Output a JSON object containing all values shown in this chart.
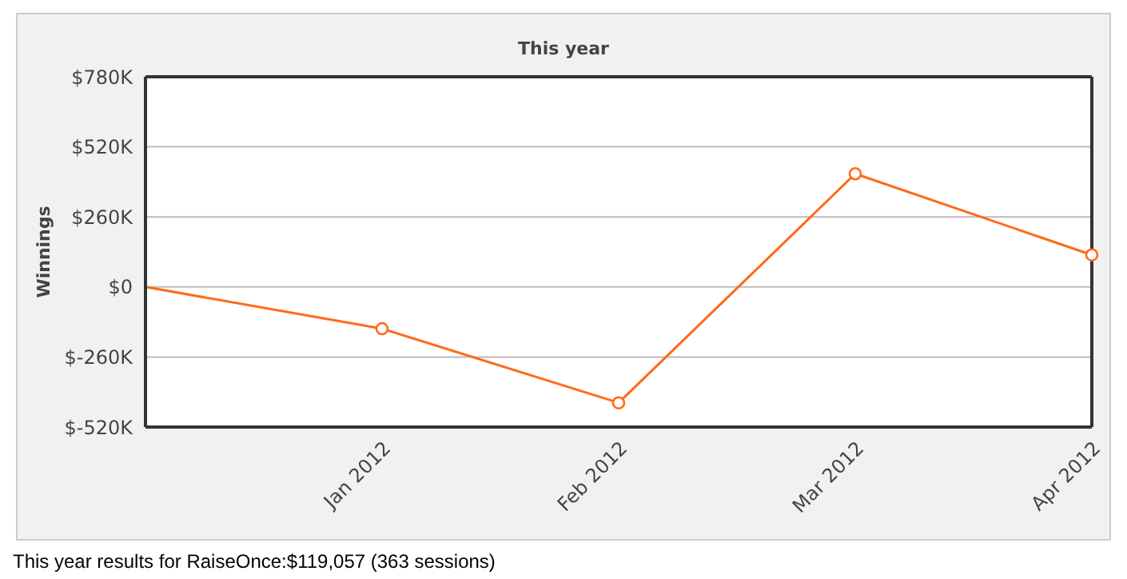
{
  "chart_data": {
    "type": "line",
    "title": "This year",
    "ylabel": "Winnings",
    "categories": [
      null,
      "Jan 2012",
      "Feb 2012",
      "Mar 2012",
      "Apr 2012"
    ],
    "series": [
      {
        "color": "#ff6a1a",
        "values": [
          0,
          -155,
          -430,
          420,
          119
        ]
      }
    ],
    "ylim": [
      -520,
      780
    ],
    "yticks": [
      {
        "value": -520,
        "label": "$-520K"
      },
      {
        "value": -260,
        "label": "$-260K"
      },
      {
        "value": 0,
        "label": "$0"
      },
      {
        "value": 260,
        "label": "$260K"
      },
      {
        "value": 520,
        "label": "$520K"
      },
      {
        "value": 780,
        "label": "$780K"
      }
    ],
    "grid": "y",
    "marker": "circle",
    "legend": false,
    "annotations": [
      "This year results for RaiseOnce:$119,057 (363 sessions)"
    ]
  }
}
